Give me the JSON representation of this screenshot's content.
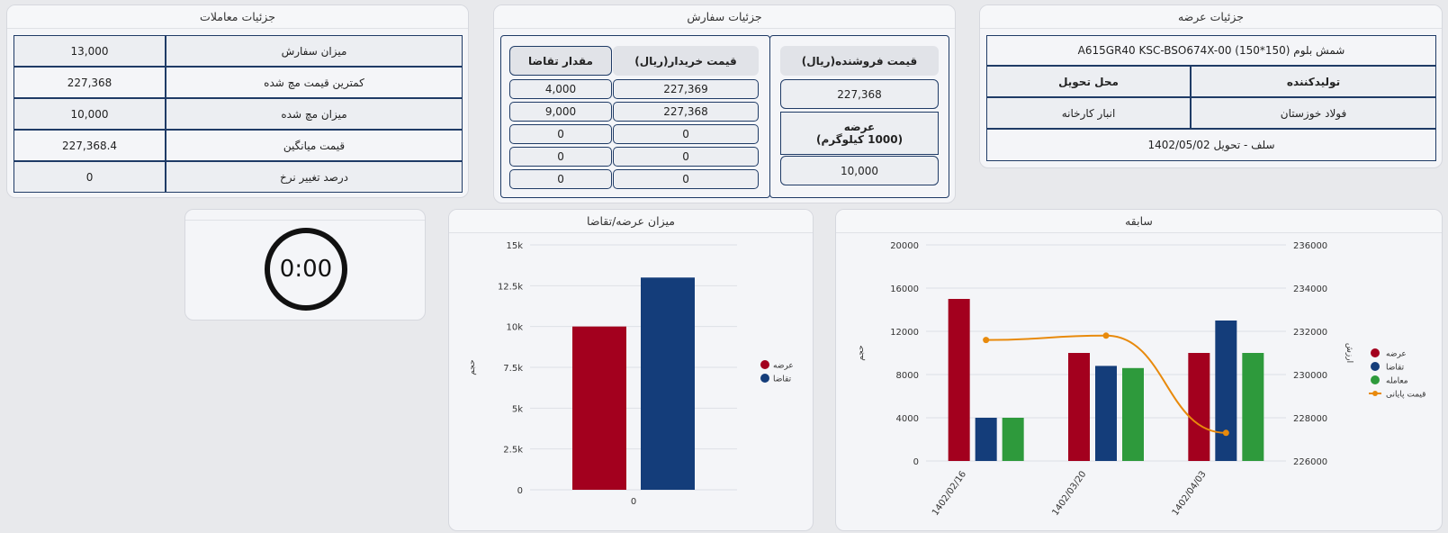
{
  "offer": {
    "title": "جزئیات عرضه",
    "product": "شمش بلوم (150*150) A615GR40 KSC-BSO674X-00",
    "producer_label": "تولیدکننده",
    "delivery_label": "محل تحویل",
    "producer": "فولاد خوزستان",
    "delivery": "انبار کارخانه",
    "settlement": "سلف - تحویل 1402/05/02"
  },
  "order": {
    "title": "جزئیات سفارش",
    "seller_price_label": "قیمت فروشنده(ریال)",
    "seller_price": "227,368",
    "supply_label": "عرضه\n(1000 کیلوگرم)",
    "supply": "10,000",
    "buyer_price_label": "قیمت خریدار(ریال)",
    "demand_qty_label": "مقدار تقاضا",
    "bids": [
      {
        "price": "227,369",
        "qty": "4,000"
      },
      {
        "price": "227,368",
        "qty": "9,000"
      },
      {
        "price": "0",
        "qty": "0"
      },
      {
        "price": "0",
        "qty": "0"
      },
      {
        "price": "0",
        "qty": "0"
      }
    ]
  },
  "trades": {
    "title": "جزئیات معاملات",
    "rows": [
      {
        "label": "میزان سفارش",
        "value": "13,000"
      },
      {
        "label": "کمترین قیمت مچ شده",
        "value": "227,368"
      },
      {
        "label": "میزان مچ شده",
        "value": "10,000"
      },
      {
        "label": "قیمت میانگین",
        "value": "227,368.4"
      },
      {
        "label": "درصد تغییر نرخ",
        "value": "0"
      }
    ]
  },
  "timer": {
    "value": "0:00"
  },
  "supply_demand_chart": {
    "title": "میزان عرضه/تقاضا",
    "chart_data": {
      "type": "bar",
      "categories": [
        "0"
      ],
      "series": [
        {
          "name": "عرضه",
          "values": [
            10000
          ],
          "color": "#a3001e"
        },
        {
          "name": "تقاضا",
          "values": [
            13000
          ],
          "color": "#143d7a"
        }
      ],
      "ylabel": "حجم",
      "ylim": [
        0,
        15000
      ],
      "yticks": [
        "0",
        "2.5k",
        "5k",
        "7.5k",
        "10k",
        "12.5k",
        "15k"
      ],
      "legend": "right"
    }
  },
  "history_chart": {
    "title": "سابقه",
    "chart_data": {
      "type": "bar",
      "categories": [
        "1402/02/16",
        "1402/03/20",
        "1402/04/03"
      ],
      "series": [
        {
          "name": "عرضه",
          "values": [
            15000,
            10000,
            10000
          ],
          "color": "#a3001e"
        },
        {
          "name": "تقاضا",
          "values": [
            4000,
            8800,
            13000
          ],
          "color": "#143d7a"
        },
        {
          "name": "معامله",
          "values": [
            4000,
            8600,
            10000
          ],
          "color": "#2e9a3c"
        }
      ],
      "line_series": {
        "name": "قیمت پایانی",
        "values": [
          231600,
          231800,
          227300
        ],
        "color": "#e88a0c"
      },
      "ylabel": "حجم",
      "y2label": "ارزش",
      "ylim": [
        0,
        20000
      ],
      "y2lim": [
        226000,
        236000
      ],
      "yticks": [
        "0",
        "4000",
        "8000",
        "12000",
        "16000",
        "20000"
      ],
      "y2ticks": [
        "226000",
        "228000",
        "230000",
        "232000",
        "234000",
        "236000"
      ],
      "legend": "right"
    }
  }
}
